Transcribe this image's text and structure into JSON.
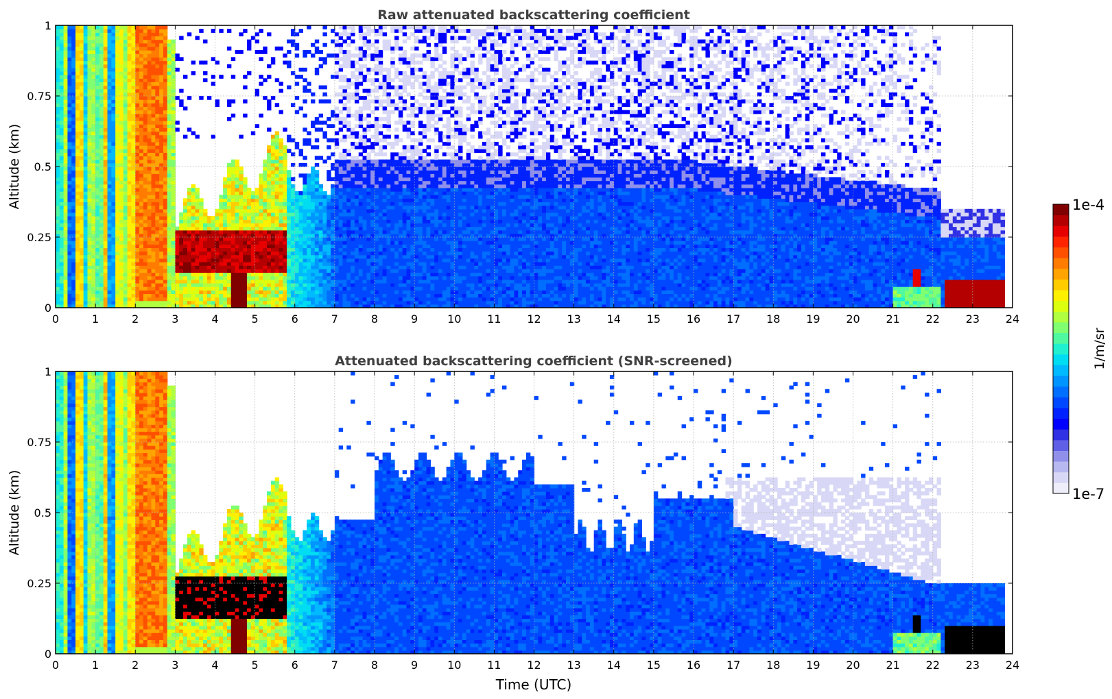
{
  "chart_data": [
    {
      "type": "heatmap",
      "title": "Raw attenuated backscattering coefficient",
      "xlabel": "",
      "ylabel": "Altitude (km)",
      "xlim": [
        0,
        24
      ],
      "ylim": [
        0,
        1
      ],
      "x_ticks": [
        "0",
        "1",
        "2",
        "3",
        "4",
        "5",
        "6",
        "7",
        "8",
        "9",
        "10",
        "11",
        "12",
        "13",
        "14",
        "15",
        "16",
        "17",
        "18",
        "19",
        "20",
        "21",
        "22",
        "23",
        "24"
      ],
      "y_ticks": [
        "0",
        "0.25",
        "0.5",
        "0.75",
        "1"
      ],
      "grid": true,
      "features": [
        {
          "x_start": 0.0,
          "x_end": 2.0,
          "alt_top": 1.0,
          "level": 0.55,
          "note": "multi-coloured vertical stripes (cyan-green-yellow)"
        },
        {
          "x_start": 2.0,
          "x_end": 2.8,
          "alt_top": 1.0,
          "level": 0.85,
          "note": "orange/red full column"
        },
        {
          "x_start": 2.8,
          "x_end": 5.5,
          "alt_top": 0.55,
          "level": 0.9,
          "note": "red/dark-red layer near 0.15-0.3 km"
        },
        {
          "x_start": 4.5,
          "x_end": 4.8,
          "alt_top": 0.15,
          "level": 0.98,
          "note": "dark red near surface"
        },
        {
          "x_start": 5.5,
          "x_end": 21.5,
          "alt_top": 0.45,
          "level": 0.32,
          "note": "blue boundary layer with noisy upper levels"
        },
        {
          "x_start": 21.5,
          "x_end": 21.7,
          "alt_top": 0.15,
          "level": 0.9,
          "note": "red patch"
        },
        {
          "x_start": 22.2,
          "x_end": 23.8,
          "alt_top": 0.1,
          "level": 0.95,
          "note": "dark red near-surface layer"
        }
      ]
    },
    {
      "type": "heatmap",
      "title": "Attenuated backscattering coefficient (SNR-screened)",
      "xlabel": "Time (UTC)",
      "ylabel": "Altitude (km)",
      "xlim": [
        0,
        24
      ],
      "ylim": [
        0,
        1
      ],
      "x_ticks": [
        "0",
        "1",
        "2",
        "3",
        "4",
        "5",
        "6",
        "7",
        "8",
        "9",
        "10",
        "11",
        "12",
        "13",
        "14",
        "15",
        "16",
        "17",
        "18",
        "19",
        "20",
        "21",
        "22",
        "23",
        "24"
      ],
      "y_ticks": [
        "0",
        "0.25",
        "0.5",
        "0.75",
        "1"
      ],
      "grid": true,
      "features": [
        {
          "x_start": 0.0,
          "x_end": 2.0,
          "alt_top": 1.0,
          "level": 0.55,
          "note": "multi-coloured vertical stripes"
        },
        {
          "x_start": 2.0,
          "x_end": 2.8,
          "alt_top": 1.0,
          "level": 0.85,
          "note": "orange/red full column"
        },
        {
          "x_start": 2.8,
          "x_end": 5.5,
          "alt_top": 0.55,
          "level": 1.0,
          "note": "black (saturated) layer 0.1-0.3 km"
        },
        {
          "x_start": 5.5,
          "x_end": 21.5,
          "alt_top": 0.7,
          "level": 0.3,
          "note": "blue screened layer, top varies 0.4-0.8 km"
        },
        {
          "x_start": 17.0,
          "x_end": 22.2,
          "alt_top": 0.6,
          "level": 0.1,
          "note": "pale lavender low-SNR fringe"
        },
        {
          "x_start": 22.2,
          "x_end": 23.8,
          "alt_top": 0.1,
          "level": 1.0,
          "note": "black near-surface layer"
        }
      ]
    }
  ],
  "colorbar": {
    "label": "1/m/sr",
    "max_label": "1e-4",
    "min_label": "1e-7",
    "colors": [
      "#eeeefb",
      "#d8d8f6",
      "#b8b8f0",
      "#9090ea",
      "#6060e6",
      "#3030e4",
      "#0000ff",
      "#0022ff",
      "#0048ff",
      "#006eff",
      "#0094ff",
      "#00baff",
      "#00dcf2",
      "#20f0d0",
      "#50f8a0",
      "#80ff70",
      "#b0ff40",
      "#dcff10",
      "#fff000",
      "#ffcc00",
      "#ffa400",
      "#ff7c00",
      "#ff5000",
      "#ff2400",
      "#e60000",
      "#b40000",
      "#800000"
    ]
  }
}
